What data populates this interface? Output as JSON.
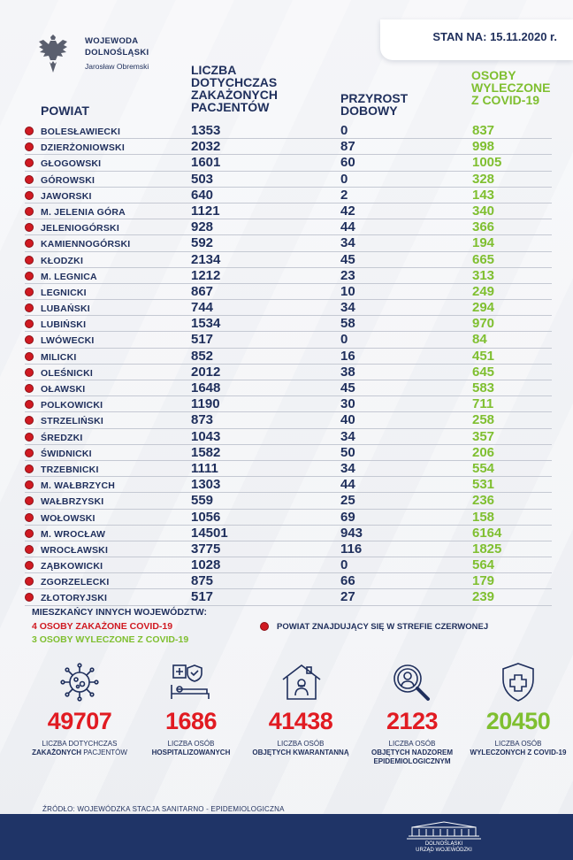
{
  "header": {
    "office_line1": "WOJEWODA",
    "office_line2": "DOLNOŚLĄSKI",
    "person": "Jarosław Obremski",
    "stan": "STAN NA: 15.11.2020 r."
  },
  "columns": {
    "powiat": "POWIAT",
    "liczba": "LICZBA\nDOTYCHCZAS\nZAKAŻONYCH\nPACJENTÓW",
    "przyrost": "PRZYROST\nDOBOWY",
    "wyleczone": "OSOBY\nWYLECZONE\nZ COVID-19"
  },
  "rows": [
    {
      "name": "BOLESŁAWIECKI",
      "total": "1353",
      "daily": "0",
      "cured": "837"
    },
    {
      "name": "DZIERŻONIOWSKI",
      "total": "2032",
      "daily": "87",
      "cured": "998"
    },
    {
      "name": "GŁOGOWSKI",
      "total": "1601",
      "daily": "60",
      "cured": "1005"
    },
    {
      "name": "GÓROWSKI",
      "total": "503",
      "daily": "0",
      "cured": "328"
    },
    {
      "name": "JAWORSKI",
      "total": "640",
      "daily": "2",
      "cured": "143"
    },
    {
      "name": "M. JELENIA GÓRA",
      "total": "1121",
      "daily": "42",
      "cured": "340"
    },
    {
      "name": "JELENIOGÓRSKI",
      "total": "928",
      "daily": "44",
      "cured": "366"
    },
    {
      "name": "KAMIENNOGÓRSKI",
      "total": "592",
      "daily": "34",
      "cured": "194"
    },
    {
      "name": "KŁODZKI",
      "total": "2134",
      "daily": "45",
      "cured": "665"
    },
    {
      "name": "M. LEGNICA",
      "total": "1212",
      "daily": "23",
      "cured": "313"
    },
    {
      "name": "LEGNICKI",
      "total": "867",
      "daily": "10",
      "cured": "249"
    },
    {
      "name": "LUBAŃSKI",
      "total": "744",
      "daily": "34",
      "cured": "294"
    },
    {
      "name": "LUBIŃSKI",
      "total": "1534",
      "daily": "58",
      "cured": "970"
    },
    {
      "name": "LWÓWECKI",
      "total": "517",
      "daily": "0",
      "cured": "84"
    },
    {
      "name": "MILICKI",
      "total": "852",
      "daily": "16",
      "cured": "451"
    },
    {
      "name": "OLEŚNICKI",
      "total": "2012",
      "daily": "38",
      "cured": "645"
    },
    {
      "name": "OŁAWSKI",
      "total": "1648",
      "daily": "45",
      "cured": "583"
    },
    {
      "name": "POLKOWICKI",
      "total": "1190",
      "daily": "30",
      "cured": "711"
    },
    {
      "name": "STRZELIŃSKI",
      "total": "873",
      "daily": "40",
      "cured": "258"
    },
    {
      "name": "ŚREDZKI",
      "total": "1043",
      "daily": "34",
      "cured": "357"
    },
    {
      "name": "ŚWIDNICKI",
      "total": "1582",
      "daily": "50",
      "cured": "206"
    },
    {
      "name": "TRZEBNICKI",
      "total": "1111",
      "daily": "34",
      "cured": "554"
    },
    {
      "name": "M. WAŁBRZYCH",
      "total": "1303",
      "daily": "44",
      "cured": "531"
    },
    {
      "name": "WAŁBRZYSKI",
      "total": "559",
      "daily": "25",
      "cured": "236"
    },
    {
      "name": "WOŁOWSKI",
      "total": "1056",
      "daily": "69",
      "cured": "158"
    },
    {
      "name": "M. WROCŁAW",
      "total": "14501",
      "daily": "943",
      "cured": "6164"
    },
    {
      "name": "WROCŁAWSKI",
      "total": "3775",
      "daily": "116",
      "cured": "1825"
    },
    {
      "name": "ZĄBKOWICKI",
      "total": "1028",
      "daily": "0",
      "cured": "564"
    },
    {
      "name": "ZGORZELECKI",
      "total": "875",
      "daily": "66",
      "cured": "179"
    },
    {
      "name": "ZŁOTORYJSKI",
      "total": "517",
      "daily": "27",
      "cured": "239"
    }
  ],
  "other": {
    "title": "MIESZKAŃCY INNYCH WOJEWÓDZTW:",
    "infected": "4 OSOBY ZAKAŻONE COVID-19",
    "cured": "3 OSOBY WYLECZONE Z COVID-19",
    "legend": "POWIAT ZNAJDUJĄCY SIĘ W STREFIE CZERWONEJ"
  },
  "stats": [
    {
      "value": "49707",
      "label_top": "LICZBA DOTYCHCZAS",
      "label_bold": "ZAKAŻONYCH",
      "label_rest": "PACJENTÓW",
      "icon": "virus-icon",
      "color": "#e11b22"
    },
    {
      "value": "1686",
      "label_top": "LICZBA OSÓB",
      "label_bold": "HOSPITALIZOWANYCH",
      "label_rest": "",
      "icon": "hospital-bed-icon",
      "color": "#e11b22"
    },
    {
      "value": "41438",
      "label_top": "LICZBA OSÓB",
      "label_bold": "OBJĘTYCH KWARANTANNĄ",
      "label_rest": "",
      "icon": "house-quarantine-icon",
      "color": "#e11b22"
    },
    {
      "value": "2123",
      "label_top": "LICZBA OSÓB",
      "label_bold": "OBJĘTYCH NADZOREM EPIDEMIOLOGICZNYM",
      "label_rest": "",
      "icon": "magnifier-person-icon",
      "color": "#e11b22"
    },
    {
      "value": "20450",
      "label_top": "LICZBA OSÓB",
      "label_bold": "WYLECZONYCH Z COVID-19",
      "label_rest": "",
      "icon": "shield-cross-icon",
      "color": "#7fbf30"
    }
  ],
  "source": "ŹRÓDŁO: WOJEWÓDZKA STACJA SANITARNO - EPIDEMIOLOGICZNA",
  "footer": {
    "line1": "DOLNOŚLĄSKI",
    "line2": "URZĄD WOJEWÓDZKI"
  }
}
